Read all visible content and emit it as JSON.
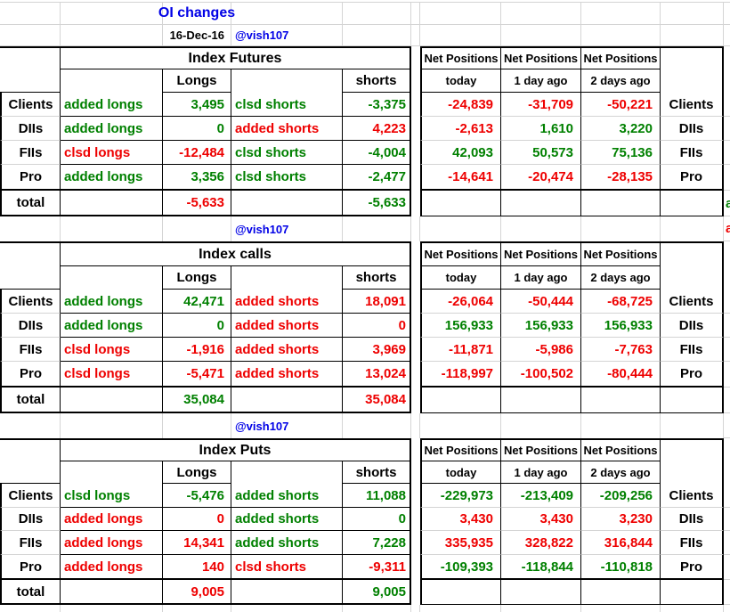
{
  "app": {
    "title": "OI changes",
    "date": "16-Dec-16",
    "handle": "@vish107"
  },
  "labels": {
    "net": "Net Positions",
    "net_sub": [
      "today",
      "1 day ago",
      "2 days ago"
    ],
    "longs": "Longs",
    "shorts": "shorts",
    "total": "total"
  },
  "colors": {
    "green": "#008000",
    "red": "#ee0000",
    "blue": "#0000e6",
    "grid": "#d4d4d4",
    "border": "#000000"
  },
  "right_edge": {
    "total_clip": {
      "t": "a",
      "c": "g"
    },
    "spacer_clip": {
      "t": "a",
      "c": "r"
    }
  },
  "sections": [
    {
      "title": "Index Futures",
      "spacer_handle": "@vish107",
      "rows": [
        {
          "group": "Clients",
          "cells": [
            {
              "t": "added longs",
              "c": "g"
            },
            {
              "t": "3,495",
              "c": "g"
            },
            {
              "t": "clsd shorts",
              "c": "g"
            },
            {
              "t": "-3,375",
              "c": "g"
            }
          ],
          "net": [
            {
              "t": "-24,839",
              "c": "r"
            },
            {
              "t": "-31,709",
              "c": "r"
            },
            {
              "t": "-50,221",
              "c": "r"
            }
          ]
        },
        {
          "group": "DIIs",
          "cells": [
            {
              "t": "added longs",
              "c": "g"
            },
            {
              "t": "0",
              "c": "g"
            },
            {
              "t": "added shorts",
              "c": "r"
            },
            {
              "t": "4,223",
              "c": "r"
            }
          ],
          "net": [
            {
              "t": "-2,613",
              "c": "r"
            },
            {
              "t": "1,610",
              "c": "g"
            },
            {
              "t": "3,220",
              "c": "g"
            }
          ]
        },
        {
          "group": "FIIs",
          "cells": [
            {
              "t": "clsd longs",
              "c": "r"
            },
            {
              "t": "-12,484",
              "c": "r"
            },
            {
              "t": "clsd shorts",
              "c": "g"
            },
            {
              "t": "-4,004",
              "c": "g"
            }
          ],
          "net": [
            {
              "t": "42,093",
              "c": "g"
            },
            {
              "t": "50,573",
              "c": "g"
            },
            {
              "t": "75,136",
              "c": "g"
            }
          ]
        },
        {
          "group": "Pro",
          "cells": [
            {
              "t": "added longs",
              "c": "g"
            },
            {
              "t": "3,356",
              "c": "g"
            },
            {
              "t": "clsd shorts",
              "c": "g"
            },
            {
              "t": "-2,477",
              "c": "g"
            }
          ],
          "net": [
            {
              "t": "-14,641",
              "c": "r"
            },
            {
              "t": "-20,474",
              "c": "r"
            },
            {
              "t": "-28,135",
              "c": "r"
            }
          ]
        }
      ],
      "total": {
        "l": {
          "t": "-5,633",
          "c": "r"
        },
        "s": {
          "t": "-5,633",
          "c": "g"
        }
      }
    },
    {
      "title": "Index calls",
      "spacer_handle": "@vish107",
      "rows": [
        {
          "group": "Clients",
          "cells": [
            {
              "t": "added longs",
              "c": "g"
            },
            {
              "t": "42,471",
              "c": "g"
            },
            {
              "t": "added shorts",
              "c": "r"
            },
            {
              "t": "18,091",
              "c": "r"
            }
          ],
          "net": [
            {
              "t": "-26,064",
              "c": "r"
            },
            {
              "t": "-50,444",
              "c": "r"
            },
            {
              "t": "-68,725",
              "c": "r"
            }
          ]
        },
        {
          "group": "DIIs",
          "cells": [
            {
              "t": "added longs",
              "c": "g"
            },
            {
              "t": "0",
              "c": "g"
            },
            {
              "t": "added shorts",
              "c": "r"
            },
            {
              "t": "0",
              "c": "r"
            }
          ],
          "net": [
            {
              "t": "156,933",
              "c": "g"
            },
            {
              "t": "156,933",
              "c": "g"
            },
            {
              "t": "156,933",
              "c": "g"
            }
          ]
        },
        {
          "group": "FIIs",
          "cells": [
            {
              "t": "clsd longs",
              "c": "r"
            },
            {
              "t": "-1,916",
              "c": "r"
            },
            {
              "t": "added shorts",
              "c": "r"
            },
            {
              "t": "3,969",
              "c": "r"
            }
          ],
          "net": [
            {
              "t": "-11,871",
              "c": "r"
            },
            {
              "t": "-5,986",
              "c": "r"
            },
            {
              "t": "-7,763",
              "c": "r"
            }
          ]
        },
        {
          "group": "Pro",
          "cells": [
            {
              "t": "clsd longs",
              "c": "r"
            },
            {
              "t": "-5,471",
              "c": "r"
            },
            {
              "t": "added shorts",
              "c": "r"
            },
            {
              "t": "13,024",
              "c": "r"
            }
          ],
          "net": [
            {
              "t": "-118,997",
              "c": "r"
            },
            {
              "t": "-100,502",
              "c": "r"
            },
            {
              "t": "-80,444",
              "c": "r"
            }
          ]
        }
      ],
      "total": {
        "l": {
          "t": "35,084",
          "c": "g"
        },
        "s": {
          "t": "35,084",
          "c": "r"
        }
      }
    },
    {
      "title": "Index Puts",
      "rows": [
        {
          "group": "Clients",
          "cells": [
            {
              "t": "clsd longs",
              "c": "g"
            },
            {
              "t": "-5,476",
              "c": "g"
            },
            {
              "t": "added shorts",
              "c": "g"
            },
            {
              "t": "11,088",
              "c": "g"
            }
          ],
          "net": [
            {
              "t": "-229,973",
              "c": "g"
            },
            {
              "t": "-213,409",
              "c": "g"
            },
            {
              "t": "-209,256",
              "c": "g"
            }
          ]
        },
        {
          "group": "DIIs",
          "cells": [
            {
              "t": "added longs",
              "c": "r"
            },
            {
              "t": "0",
              "c": "r"
            },
            {
              "t": "added shorts",
              "c": "g"
            },
            {
              "t": "0",
              "c": "g"
            }
          ],
          "net": [
            {
              "t": "3,430",
              "c": "r"
            },
            {
              "t": "3,430",
              "c": "r"
            },
            {
              "t": "3,230",
              "c": "r"
            }
          ]
        },
        {
          "group": "FIIs",
          "cells": [
            {
              "t": "added longs",
              "c": "r"
            },
            {
              "t": "14,341",
              "c": "r"
            },
            {
              "t": "added shorts",
              "c": "g"
            },
            {
              "t": "7,228",
              "c": "g"
            }
          ],
          "net": [
            {
              "t": "335,935",
              "c": "r"
            },
            {
              "t": "328,822",
              "c": "r"
            },
            {
              "t": "316,844",
              "c": "r"
            }
          ]
        },
        {
          "group": "Pro",
          "cells": [
            {
              "t": "added longs",
              "c": "r"
            },
            {
              "t": "140",
              "c": "r"
            },
            {
              "t": "clsd shorts",
              "c": "r"
            },
            {
              "t": "-9,311",
              "c": "r"
            }
          ],
          "net": [
            {
              "t": "-109,393",
              "c": "g"
            },
            {
              "t": "-118,844",
              "c": "g"
            },
            {
              "t": "-110,818",
              "c": "g"
            }
          ]
        }
      ],
      "total": {
        "l": {
          "t": "9,005",
          "c": "r"
        },
        "s": {
          "t": "9,005",
          "c": "g"
        }
      }
    }
  ]
}
